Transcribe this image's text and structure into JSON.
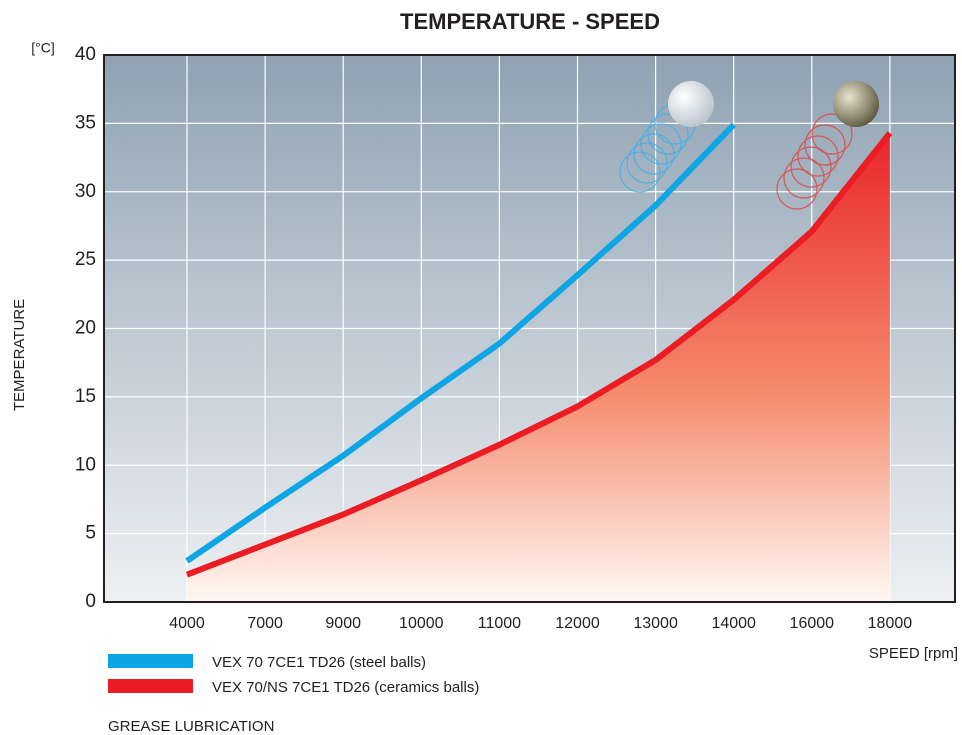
{
  "chart_data": {
    "type": "line",
    "title": "TEMPERATURE - SPEED",
    "y_unit": "[°C]",
    "y_label": "TEMPERATURE",
    "x_label": "SPEED [rpm]",
    "note": "GREASE LUBRICATION",
    "categories": [
      "4000",
      "7000",
      "9000",
      "10000",
      "11000",
      "12000",
      "13000",
      "14000",
      "16000",
      "18000"
    ],
    "series": [
      {
        "name": "VEX 70 7CE1 TD26 (steel balls)",
        "color": "#0ea5e4",
        "area": false,
        "values": [
          3.0,
          6.9,
          10.7,
          14.9,
          18.9,
          23.9,
          29.0,
          34.9,
          null,
          null
        ]
      },
      {
        "name": "VEX 70/NS 7CE1 TD26 (ceramics balls)",
        "color": "#ec1c24",
        "area": true,
        "values": [
          2.0,
          4.2,
          6.4,
          8.9,
          11.5,
          14.3,
          17.7,
          22.1,
          27.1,
          34.3
        ]
      }
    ],
    "ylim": [
      0,
      40
    ],
    "yticks": [
      0,
      5,
      10,
      15,
      20,
      25,
      30,
      35,
      40
    ],
    "grid": true
  }
}
